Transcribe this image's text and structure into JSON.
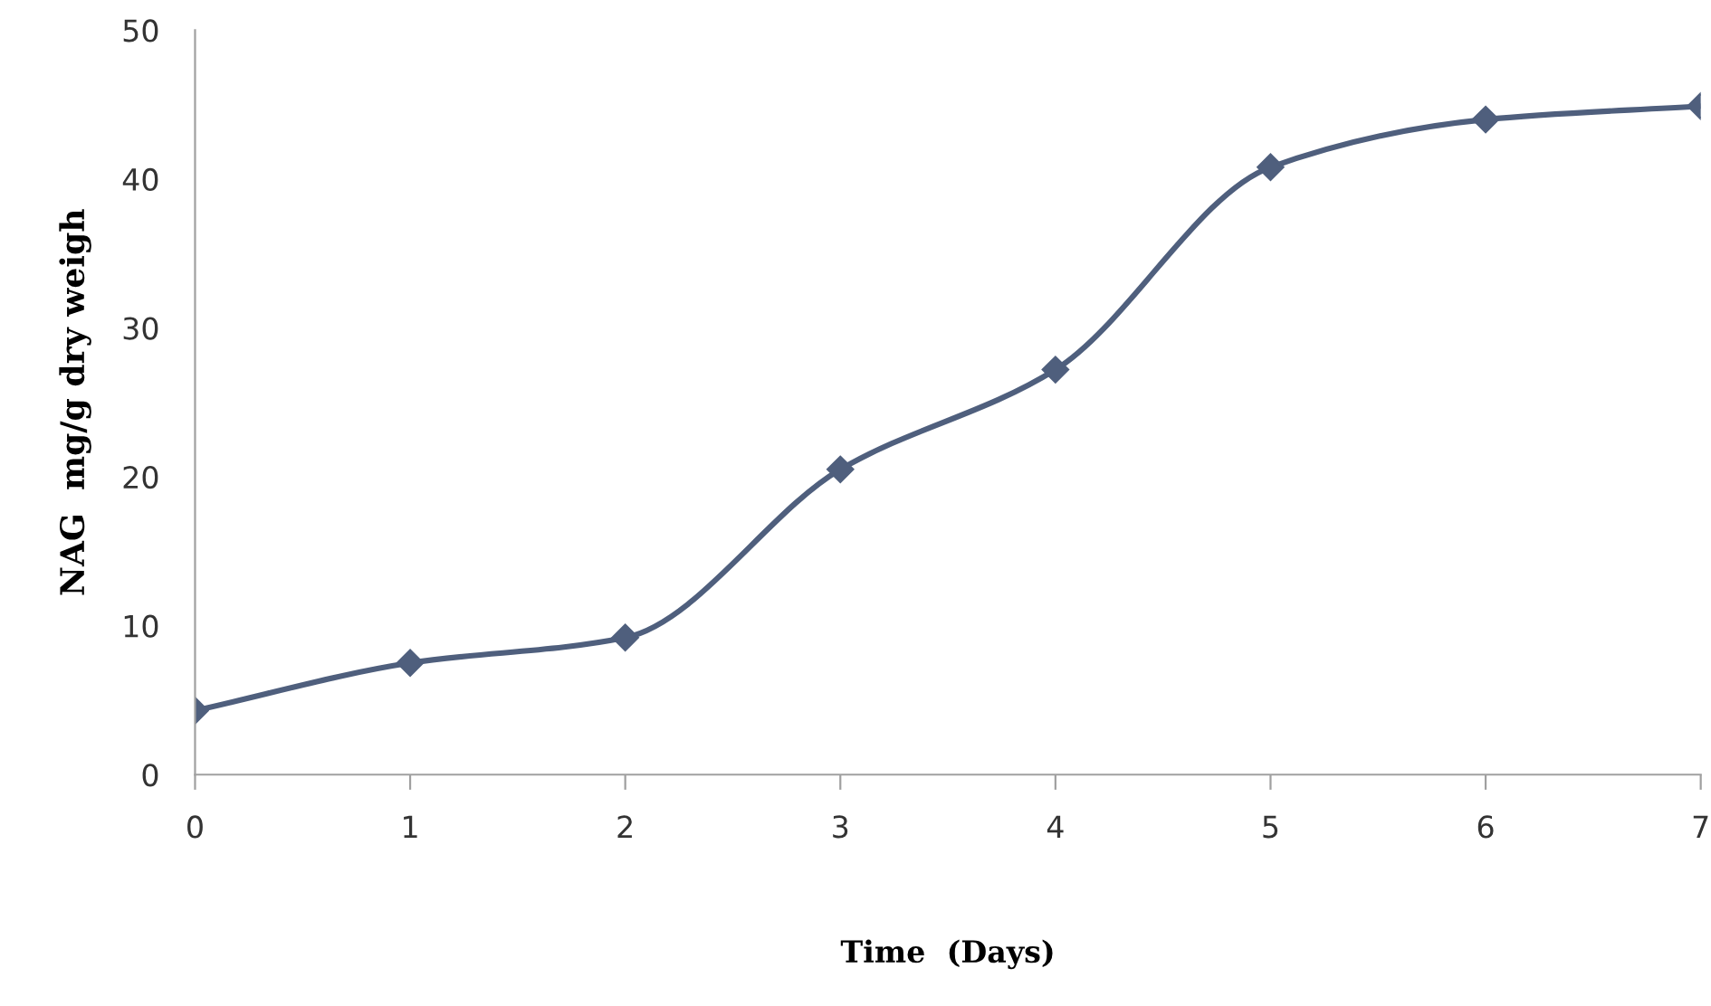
{
  "chart_data": {
    "type": "line",
    "xlabel": "Time  (Days)",
    "ylabel": "NAG  mg/g dry weigh",
    "x": [
      0,
      1,
      2,
      3,
      4,
      5,
      6,
      7
    ],
    "series": [
      {
        "color": "#4f5f7d",
        "values": [
          4.3,
          7.5,
          9.2,
          20.5,
          27.2,
          40.8,
          44.0,
          44.9
        ]
      }
    ],
    "xlim": [
      0,
      7
    ],
    "xticks": [
      0,
      1,
      2,
      3,
      4,
      5,
      6,
      7
    ],
    "ylim": [
      0,
      50
    ],
    "yticks": [
      0,
      10,
      20,
      30,
      40,
      50
    ],
    "marker": "diamond",
    "line_style": "solid",
    "grid": false
  }
}
